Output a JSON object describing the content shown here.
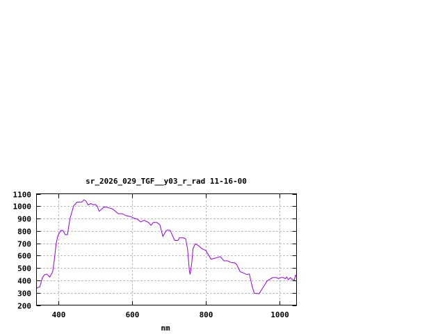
{
  "chart_data": {
    "type": "line",
    "title": "sr_2026_029_TGF__y03_r_rad 11-16-00",
    "xlabel": "nm",
    "ylabel": "",
    "xlim": [
      341,
      1047
    ],
    "ylim": [
      200,
      1100
    ],
    "xticks": [
      400,
      600,
      800,
      1000
    ],
    "yticks": [
      200,
      300,
      400,
      500,
      600,
      700,
      800,
      900,
      1000,
      1100
    ],
    "grid": true,
    "line_color": "#9400d3",
    "series": [
      {
        "x": [
          341,
          344,
          350,
          357,
          363,
          369,
          377,
          385,
          390,
          394,
          399,
          407,
          413,
          419,
          425,
          432,
          442,
          451,
          464,
          470,
          475,
          481,
          489,
          495,
          501,
          506,
          511,
          525,
          539,
          548,
          563,
          574,
          583,
          596,
          608,
          614,
          624,
          633,
          645,
          652,
          658,
          668,
          676,
          684,
          693,
          696,
          704,
          716,
          725,
          729,
          740,
          746,
          751,
          756,
          758,
          762,
          766,
          772,
          781,
          791,
          800,
          806,
          815,
          825,
          840,
          850,
          860,
          869,
          879,
          884,
          894,
          903,
          911,
          919,
          926,
          932,
          945,
          954,
          967,
          982,
          992,
          998,
          1004,
          1010,
          1017,
          1020,
          1025,
          1030,
          1035,
          1041,
          1044,
          1047
        ],
        "y": [
          335,
          342,
          348,
          423,
          446,
          451,
          427,
          470,
          582,
          695,
          761,
          804,
          804,
          770,
          770,
          901,
          1004,
          1033,
          1033,
          1051,
          1042,
          1010,
          1021,
          1010,
          1014,
          999,
          958,
          995,
          986,
          976,
          939,
          939,
          924,
          916,
          901,
          896,
          873,
          886,
          868,
          845,
          868,
          868,
          849,
          755,
          802,
          807,
          804,
          723,
          723,
          744,
          744,
          736,
          657,
          480,
          448,
          526,
          657,
          695,
          680,
          654,
          643,
          615,
          571,
          579,
          592,
          558,
          558,
          545,
          541,
          530,
          470,
          460,
          448,
          451,
          357,
          297,
          292,
          333,
          395,
          423,
          423,
          414,
          423,
          423,
          414,
          428,
          406,
          423,
          409,
          404,
          442,
          432
        ]
      }
    ]
  }
}
